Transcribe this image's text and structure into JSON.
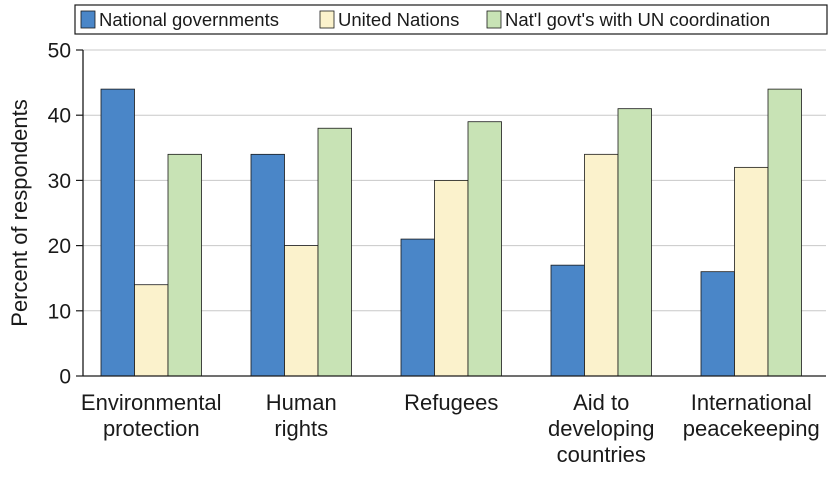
{
  "chart_data": {
    "type": "bar",
    "categories": [
      [
        "Environmental",
        "protection"
      ],
      [
        "Human",
        "rights"
      ],
      [
        "Refugees"
      ],
      [
        "Aid to",
        "developing",
        "countries"
      ],
      [
        "International",
        "peacekeeping"
      ]
    ],
    "series": [
      {
        "name": "National governments",
        "color": "#4a86c8",
        "values": [
          44,
          34,
          21,
          17,
          16
        ]
      },
      {
        "name": "United Nations",
        "color": "#fbf2cc",
        "values": [
          14,
          20,
          30,
          34,
          32
        ]
      },
      {
        "name": "Nat'l govt's with UN coordination",
        "color": "#c8e3b5",
        "values": [
          34,
          38,
          39,
          41,
          44
        ]
      }
    ],
    "ylabel": "Percent of respondents",
    "ylim": [
      0,
      50
    ],
    "yticks": [
      0,
      10,
      20,
      30,
      40,
      50
    ],
    "grid": true,
    "legend_position": "top"
  }
}
